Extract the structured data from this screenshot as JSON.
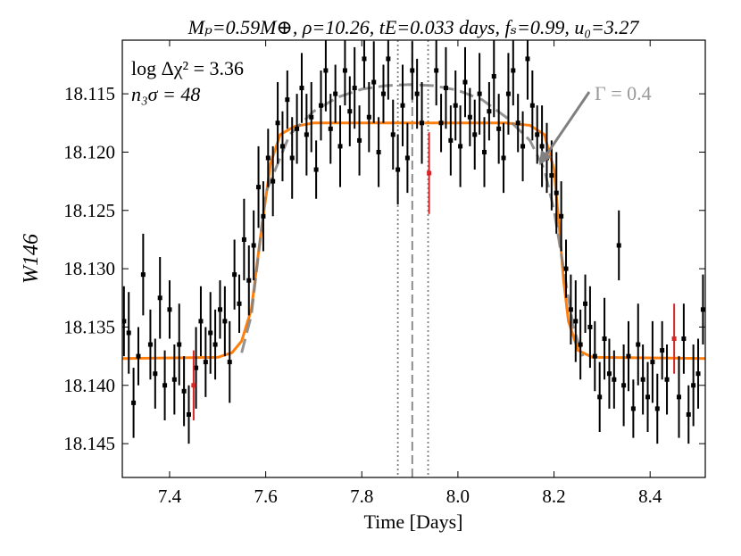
{
  "chart_data": {
    "type": "scatter",
    "title": "Mₚ=0.59M⊕, ρ=10.26, tE=0.033 days, fₛ=0.99, u₀=3.27",
    "xlabel": "Time [Days]",
    "ylabel": "W146",
    "xlim": [
      7.3016,
      8.5148
    ],
    "ylim": [
      18.1479,
      18.1104
    ],
    "xticks": [
      7.4,
      7.6,
      7.8,
      {
        "value": 8,
        "label": "8.0"
      },
      8.2,
      8.4
    ],
    "yticks": [
      18.115,
      {
        "value": 18.12,
        "label": "18.120"
      },
      18.125,
      {
        "value": 18.13,
        "label": "18.130"
      },
      18.135,
      {
        "value": 18.14,
        "label": "18.140"
      },
      18.145
    ],
    "series": [
      {
        "color": "#000000",
        "x": [
          7.305,
          7.315,
          7.325,
          7.335,
          7.345,
          7.36,
          7.37,
          7.38,
          7.39,
          7.4,
          7.41,
          7.42,
          7.43,
          7.44,
          7.455,
          7.465,
          7.475,
          7.485,
          7.495,
          7.505,
          7.515,
          7.525,
          7.535,
          7.545,
          7.555,
          7.565,
          7.575,
          7.585,
          7.595,
          7.605,
          7.615,
          7.625,
          7.635,
          7.645,
          7.655,
          7.665,
          7.675,
          7.685,
          7.695,
          7.705,
          7.715,
          7.725,
          7.735,
          7.745,
          7.755,
          7.765,
          7.775,
          7.785,
          7.795,
          7.805,
          7.815,
          7.825,
          7.835,
          7.845,
          7.855,
          7.865,
          7.875,
          7.885,
          7.895,
          7.905,
          7.915,
          7.925,
          7.955,
          7.965,
          7.975,
          7.985,
          7.995,
          8.005,
          8.015,
          8.025,
          8.035,
          8.045,
          8.055,
          8.065,
          8.075,
          8.085,
          8.095,
          8.105,
          8.115,
          8.125,
          8.135,
          8.145,
          8.155,
          8.165,
          8.175,
          8.185,
          8.195,
          8.205,
          8.215,
          8.225,
          8.235,
          8.245,
          8.255,
          8.265,
          8.275,
          8.285,
          8.295,
          8.305,
          8.315,
          8.325,
          8.335,
          8.345,
          8.355,
          8.365,
          8.375,
          8.385,
          8.395,
          8.405,
          8.415,
          8.425,
          8.435,
          8.46,
          8.47,
          8.48,
          8.49,
          8.5,
          8.51
        ],
        "values": [
          18.1345,
          18.1355,
          18.1415,
          18.1375,
          18.1305,
          18.1365,
          18.139,
          18.1325,
          18.14,
          18.1335,
          18.1395,
          18.1365,
          18.1405,
          18.1425,
          18.1385,
          18.1345,
          18.138,
          18.1355,
          18.1365,
          18.1335,
          18.1345,
          18.138,
          18.1305,
          18.133,
          18.1275,
          18.131,
          18.128,
          18.123,
          18.1255,
          18.1205,
          18.1225,
          18.1175,
          18.1195,
          18.1155,
          18.1205,
          18.118,
          18.1145,
          18.1185,
          18.117,
          18.1215,
          18.116,
          18.113,
          18.118,
          18.115,
          18.1195,
          18.113,
          18.1165,
          18.1145,
          18.119,
          18.112,
          18.117,
          18.114,
          18.12,
          18.115,
          18.112,
          18.1185,
          18.1215,
          18.116,
          18.1205,
          18.113,
          18.115,
          18.1175,
          18.113,
          18.1175,
          18.1145,
          18.119,
          18.116,
          18.1195,
          18.114,
          18.117,
          18.1185,
          18.115,
          18.12,
          18.1165,
          18.1135,
          18.118,
          18.1205,
          18.115,
          18.113,
          18.1175,
          18.1195,
          18.112,
          18.116,
          18.1185,
          18.1195,
          18.1205,
          18.122,
          18.1235,
          18.1255,
          18.13,
          18.1335,
          18.1345,
          18.1365,
          18.133,
          18.135,
          18.1375,
          18.141,
          18.136,
          18.139,
          18.1395,
          18.128,
          18.14,
          18.1375,
          18.142,
          18.1365,
          18.1395,
          18.141,
          18.138,
          18.142,
          18.137,
          18.1395,
          18.141,
          18.136,
          18.1425,
          18.14,
          18.139,
          18.1335
        ],
        "errors": [
          0.003,
          0.0035,
          0.003,
          0.0025,
          0.0035,
          0.003,
          0.003,
          0.0035,
          0.003,
          0.0025,
          0.003,
          0.0035,
          0.003,
          0.0025,
          0.0035,
          0.003,
          0.003,
          0.0035,
          0.003,
          0.0025,
          0.003,
          0.0035,
          0.003,
          0.0025,
          0.0035,
          0.003,
          0.003,
          0.0035,
          0.003,
          0.0025,
          0.003,
          0.0035,
          0.003,
          0.0025,
          0.0035,
          0.003,
          0.003,
          0.0035,
          0.003,
          0.0025,
          0.003,
          0.0035,
          0.003,
          0.0025,
          0.0035,
          0.003,
          0.003,
          0.0035,
          0.003,
          0.0025,
          0.003,
          0.0035,
          0.003,
          0.0025,
          0.0035,
          0.003,
          0.003,
          0.0035,
          0.003,
          0.0025,
          0.003,
          0.0035,
          0.003,
          0.0025,
          0.0035,
          0.003,
          0.003,
          0.0035,
          0.003,
          0.0025,
          0.003,
          0.0035,
          0.003,
          0.0025,
          0.0035,
          0.003,
          0.003,
          0.0035,
          0.003,
          0.0025,
          0.003,
          0.0035,
          0.003,
          0.0025,
          0.0035,
          0.003,
          0.003,
          0.0035,
          0.003,
          0.0025,
          0.003,
          0.0035,
          0.003,
          0.0025,
          0.0035,
          0.003,
          0.003,
          0.0035,
          0.003,
          0.0025,
          0.003,
          0.0035,
          0.003,
          0.0025,
          0.0035,
          0.003,
          0.003,
          0.0035,
          0.003,
          0.0025,
          0.003,
          0.0035,
          0.003,
          0.0025,
          0.0035,
          0.003,
          0.003
        ]
      },
      {
        "color": "#d62728",
        "x": [
          7.45,
          7.94,
          8.45
        ],
        "values": [
          18.14,
          18.1218,
          18.136
        ],
        "errors": [
          0.003,
          0.0035,
          0.003
        ]
      }
    ],
    "lines": [
      {
        "color": "#ff7f0e",
        "style": "solid",
        "x": [
          7.3016,
          7.5,
          7.53,
          7.55,
          7.57,
          7.59,
          7.61,
          7.63,
          7.66,
          7.7,
          8.1,
          8.15,
          8.18,
          8.2,
          8.21,
          8.22,
          8.23,
          8.25,
          8.28,
          8.5148
        ],
        "values": [
          18.1377,
          18.1376,
          18.1372,
          18.1362,
          18.1335,
          18.127,
          18.121,
          18.1185,
          18.1178,
          18.1175,
          18.1175,
          18.1177,
          18.1185,
          18.1215,
          18.126,
          18.131,
          18.1345,
          18.137,
          18.1376,
          18.1377
        ]
      },
      {
        "color": "#808080",
        "style": "dashed",
        "x": [
          7.55,
          7.57,
          7.6,
          7.65,
          7.7,
          7.75,
          7.8,
          7.85,
          7.9,
          7.95,
          8.0,
          8.05,
          8.1,
          8.15,
          8.18,
          8.2,
          8.22,
          8.24,
          8.26
        ],
        "values": [
          18.1372,
          18.134,
          18.1235,
          18.1185,
          18.1165,
          18.1153,
          18.1146,
          18.1143,
          18.1142,
          18.1143,
          18.1147,
          18.1155,
          18.117,
          18.119,
          18.1215,
          18.125,
          18.13,
          18.135,
          18.1375
        ]
      }
    ],
    "vlines": [
      {
        "x": 7.905,
        "style": "dashed",
        "color": "#808080"
      },
      {
        "x": 7.875,
        "style": "dotted",
        "color": "#808080"
      },
      {
        "x": 7.938,
        "style": "dotted",
        "color": "#808080"
      }
    ],
    "annotations": [
      "log Δχ² = 3.36",
      "n₃σ = 48",
      "Γ = 0.4"
    ]
  }
}
